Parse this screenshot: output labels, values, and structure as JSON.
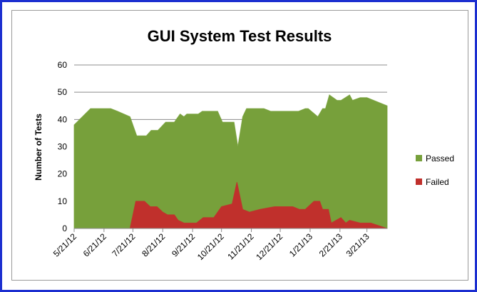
{
  "chart_data": {
    "type": "area",
    "title": "GUI System Test Results",
    "y_label": "Number of Tests",
    "xlim": [
      "2012-05-21",
      "2013-04-11"
    ],
    "xticks": [
      {
        "value": "2012-05-21",
        "label": "5/21/12"
      },
      {
        "value": "2012-06-21",
        "label": "6/21/12"
      },
      {
        "value": "2012-07-21",
        "label": "7/21/12"
      },
      {
        "value": "2012-08-21",
        "label": "8/21/12"
      },
      {
        "value": "2012-09-21",
        "label": "9/21/12"
      },
      {
        "value": "2012-10-21",
        "label": "10/21/12"
      },
      {
        "value": "2012-11-21",
        "label": "11/21/12"
      },
      {
        "value": "2012-12-21",
        "label": "12/21/12"
      },
      {
        "value": "2013-01-21",
        "label": "1/21/13"
      },
      {
        "value": "2013-02-21",
        "label": "2/21/13"
      },
      {
        "value": "2013-03-21",
        "label": "3/21/13"
      }
    ],
    "ylim": [
      0,
      60
    ],
    "yticks": [
      0,
      10,
      20,
      30,
      40,
      50,
      60
    ],
    "grid": true,
    "legend": "right",
    "series": [
      {
        "name": "Passed",
        "color": "#77a03b",
        "x": [
          "2012-05-21",
          "2012-06-07",
          "2012-06-28",
          "2012-07-05",
          "2012-07-18",
          "2012-07-25",
          "2012-08-04",
          "2012-08-09",
          "2012-08-16",
          "2012-08-24",
          "2012-09-02",
          "2012-09-08",
          "2012-09-12",
          "2012-09-15",
          "2012-09-27",
          "2012-10-01",
          "2012-10-17",
          "2012-10-22",
          "2012-11-03",
          "2012-11-07",
          "2012-11-12",
          "2012-11-16",
          "2012-12-04",
          "2012-12-11",
          "2013-01-09",
          "2013-01-16",
          "2013-01-19",
          "2013-01-29",
          "2013-02-03",
          "2013-02-06",
          "2013-02-10",
          "2013-02-18",
          "2013-02-22",
          "2013-03-03",
          "2013-03-06",
          "2013-03-14",
          "2013-03-21",
          "2013-04-11"
        ],
        "values": [
          38,
          44,
          44,
          43,
          41,
          34,
          34,
          36,
          36,
          39,
          39,
          42,
          41,
          42,
          42,
          43,
          43,
          39,
          39,
          30,
          41,
          44,
          44,
          43,
          43,
          44,
          44,
          41,
          44,
          44,
          49,
          47,
          47,
          49,
          47,
          48,
          48,
          45
        ]
      },
      {
        "name": "Failed",
        "color": "#c0302c",
        "x": [
          "2012-05-21",
          "2012-07-18",
          "2012-07-24",
          "2012-08-02",
          "2012-08-08",
          "2012-08-15",
          "2012-08-21",
          "2012-08-26",
          "2012-09-02",
          "2012-09-06",
          "2012-09-12",
          "2012-09-25",
          "2012-10-02",
          "2012-10-13",
          "2012-10-21",
          "2012-11-01",
          "2012-11-06",
          "2012-11-12",
          "2012-11-19",
          "2012-11-30",
          "2012-12-15",
          "2013-01-03",
          "2013-01-10",
          "2013-01-16",
          "2013-01-25",
          "2013-01-31",
          "2013-02-03",
          "2013-02-09",
          "2013-02-12",
          "2013-02-22",
          "2013-02-27",
          "2013-03-03",
          "2013-03-14",
          "2013-03-25",
          "2013-04-11"
        ],
        "values": [
          0,
          0,
          10,
          10,
          8,
          8,
          6,
          5,
          5,
          3,
          2,
          2,
          4,
          4,
          8,
          9,
          17,
          7,
          6,
          7,
          8,
          8,
          7,
          7,
          10,
          10,
          7,
          7,
          2,
          4,
          2,
          3,
          2,
          2,
          0
        ]
      }
    ]
  }
}
